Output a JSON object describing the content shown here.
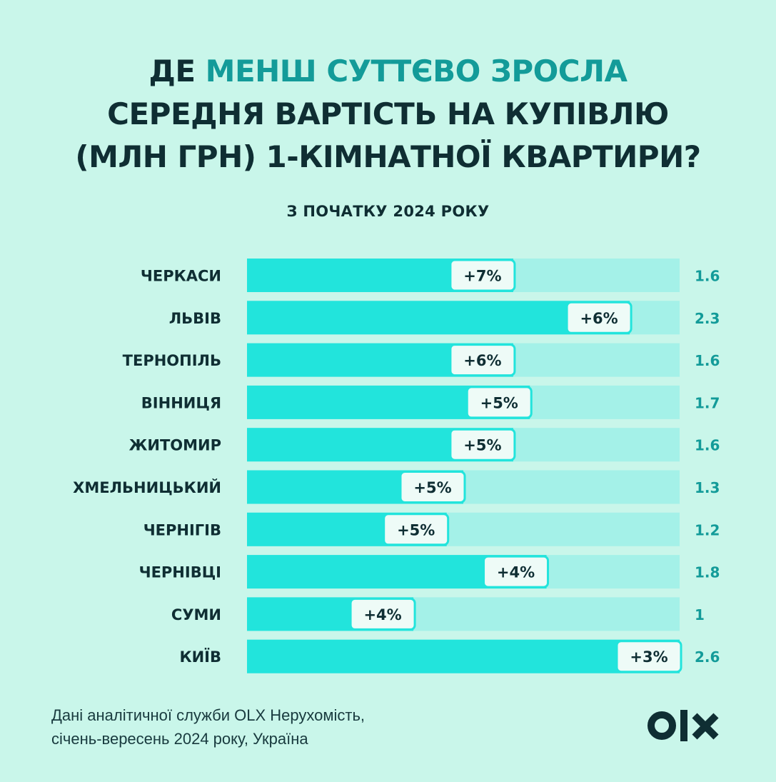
{
  "title": {
    "line1_prefix": "ДЕ ",
    "line1_accent": "МЕНШ СУТТЄВО ЗРОСЛА",
    "line2": "СЕРЕДНЯ ВАРТІСТЬ НА КУПІВЛЮ",
    "line3": "(МЛН ГРН) 1-КІМНАТНОЇ КВАРТИРИ?"
  },
  "subtitle": "З ПОЧАТКУ 2024 РОКУ",
  "colors": {
    "background": "#c9f6ea",
    "bar_fill": "#22e4dc",
    "bar_track": "#a4f1e8",
    "label_badge_bg": "#eefbf7",
    "label_badge_border": "#22e4dc",
    "value_text": "#139b99",
    "accent_title": "#139b99",
    "dark_text": "#0f2e33"
  },
  "chart_data": {
    "type": "bar",
    "orientation": "horizontal",
    "title": "ДЕ МЕНШ СУТТЄВО ЗРОСЛА СЕРЕДНЯ ВАРТІСТЬ НА КУПІВЛЮ (МЛН ГРН) 1-КІМНАТНОЇ КВАРТИРИ?",
    "subtitle": "З ПОЧАТКУ 2024 РОКУ",
    "categories": [
      "ЧЕРКАСИ",
      "ЛЬВІВ",
      "ТЕРНОПІЛЬ",
      "ВІННИЦЯ",
      "ЖИТОМИР",
      "ХМЕЛЬНИЦЬКИЙ",
      "ЧЕРНІГІВ",
      "ЧЕРНІВЦІ",
      "СУМИ",
      "КИЇВ"
    ],
    "values": [
      1.6,
      2.3,
      1.6,
      1.7,
      1.6,
      1.3,
      1.2,
      1.8,
      1.0,
      2.6
    ],
    "value_labels": [
      "1.6",
      "2.3",
      "1.6",
      "1.7",
      "1.6",
      "1.3",
      "1.2",
      "1.8",
      "1",
      "2.6"
    ],
    "change_labels": [
      "+7%",
      "+6%",
      "+6%",
      "+5%",
      "+5%",
      "+5%",
      "+5%",
      "+4%",
      "+4%",
      "+3%"
    ],
    "xlim": [
      0,
      2.6
    ],
    "grid": false,
    "legend": false
  },
  "footer": {
    "line1": "Дані аналітичної служби OLX Нерухомість,",
    "line2": "січень-вересень 2024 року, Україна"
  },
  "logo": {
    "text": "OLX",
    "icon": "olx-logo"
  }
}
